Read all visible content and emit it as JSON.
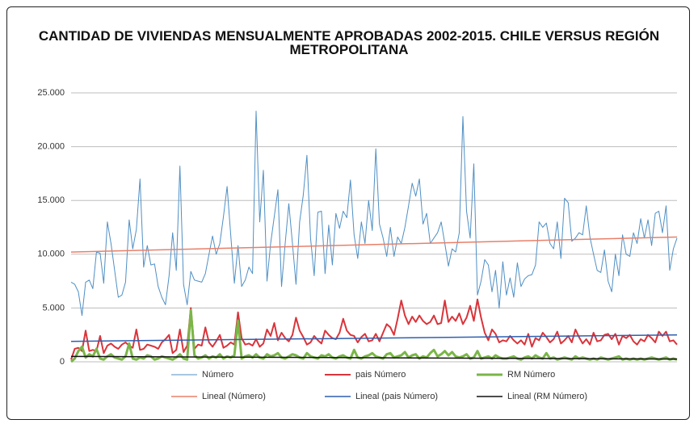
{
  "chart_data": {
    "type": "line",
    "title": "CANTIDAD DE VIVIENDAS MENSUALMENTE APROBADAS 2002-2015. CHILE VERSUS REGIÓN METROPOLITANA",
    "ylim": [
      0,
      25000
    ],
    "yticks": [
      0,
      {
        "value": 5000,
        "label": "5.000"
      },
      {
        "value": 10000,
        "label": "10.000"
      },
      {
        "value": 15000,
        "label": "15.000"
      },
      {
        "value": 20000,
        "label": "20.000"
      },
      {
        "value": 25000,
        "label": "25.000"
      }
    ],
    "grid": true,
    "legend": "bottom",
    "series": [
      {
        "name": "Número",
        "color": "#4f8fc4",
        "values": [
          7400,
          7200,
          6500,
          4300,
          7400,
          7600,
          6800,
          10200,
          10100,
          7300,
          13000,
          11000,
          8500,
          6000,
          6200,
          7400,
          13200,
          10500,
          12300,
          17000,
          8800,
          10800,
          9000,
          9100,
          7000,
          6000,
          5300,
          8000,
          12000,
          8500,
          18200,
          7200,
          5300,
          8400,
          7600,
          7500,
          7400,
          8200,
          10000,
          11700,
          10000,
          11000,
          13500,
          16300,
          11800,
          7300,
          10800,
          7000,
          7600,
          8800,
          8200,
          23300,
          13000,
          17800,
          7500,
          11000,
          13500,
          16000,
          7000,
          11000,
          14700,
          11000,
          7200,
          13000,
          15500,
          19200,
          11500,
          8000,
          13900,
          14000,
          8200,
          12700,
          9000,
          13800,
          12400,
          14000,
          13400,
          16900,
          11800,
          9600,
          13000,
          11000,
          15000,
          12200,
          19800,
          12800,
          11500,
          9800,
          12500,
          9800,
          11600,
          11000,
          12500,
          14500,
          16600,
          15400,
          17000,
          12800,
          13800,
          11000,
          11500,
          12000,
          13000,
          11000,
          8900,
          10500,
          10200,
          12000,
          22800,
          14000,
          11500,
          18400,
          6200,
          7500,
          9500,
          9000,
          6500,
          8500,
          5000,
          9300,
          6200,
          7800,
          6000,
          9200,
          7000,
          7700,
          8000,
          8100,
          9000,
          13000,
          12500,
          12900,
          11000,
          10500,
          13000,
          9600,
          15200,
          14800,
          11200,
          11500,
          12000,
          11800,
          14500,
          11600,
          10000,
          8500,
          8300,
          10400,
          7500,
          6500,
          10000,
          8000,
          11800,
          10000,
          9800,
          12000,
          11000,
          13300,
          11500,
          13200,
          10800,
          13800,
          14000,
          12000,
          14500,
          8500,
          10500,
          11500
        ]
      },
      {
        "name": "pais Número",
        "color": "#d9343b",
        "values": [
          200,
          1200,
          1300,
          1000,
          2900,
          1000,
          1100,
          1000,
          2400,
          800,
          1500,
          1700,
          1400,
          1200,
          1600,
          1800,
          1500,
          1300,
          3000,
          1100,
          1200,
          1600,
          1500,
          1400,
          1200,
          1800,
          2100,
          2500,
          800,
          1100,
          3000,
          900,
          1500,
          5000,
          1200,
          1600,
          1500,
          3200,
          1800,
          1400,
          1900,
          2500,
          1300,
          1500,
          1800,
          1600,
          4600,
          2200,
          1600,
          1700,
          1500,
          2100,
          1400,
          1700,
          3000,
          2400,
          3600,
          2000,
          2700,
          2200,
          1900,
          2500,
          4100,
          2900,
          2300,
          1600,
          1800,
          2400,
          2000,
          1700,
          2900,
          2500,
          2200,
          2100,
          2700,
          4000,
          2900,
          2500,
          2400,
          1800,
          2300,
          2600,
          1900,
          2000,
          2600,
          1900,
          2700,
          3500,
          3200,
          2500,
          4000,
          5700,
          4300,
          3500,
          4200,
          3700,
          4300,
          3800,
          3500,
          3700,
          4300,
          3500,
          3600,
          5700,
          3700,
          4200,
          3800,
          4500,
          3500,
          4100,
          5200,
          3800,
          5800,
          4100,
          2700,
          2000,
          3000,
          2600,
          1800,
          2000,
          1900,
          2400,
          2000,
          1700,
          2000,
          1600,
          2600,
          1400,
          2200,
          2000,
          2700,
          2300,
          1800,
          2100,
          2800,
          1700,
          2000,
          2400,
          1800,
          3000,
          2300,
          1700,
          2100,
          1600,
          2700,
          1900,
          2000,
          2500,
          2600,
          2100,
          2600,
          1600,
          2400,
          2200,
          2500,
          1900,
          1600,
          2100,
          1900,
          2500,
          2200,
          1800,
          2800,
          2400,
          2800,
          1900,
          2000,
          1600
        ]
      },
      {
        "name": "RM Número",
        "color": "#7ab648",
        "values": [
          0,
          300,
          1000,
          1400,
          400,
          700,
          500,
          1200,
          300,
          200,
          500,
          700,
          400,
          300,
          200,
          500,
          1700,
          300,
          200,
          400,
          300,
          600,
          500,
          200,
          300,
          500,
          400,
          300,
          200,
          400,
          700,
          300,
          200,
          4800,
          600,
          300,
          400,
          600,
          300,
          500,
          400,
          700,
          300,
          500,
          400,
          600,
          3800,
          300,
          500,
          600,
          400,
          700,
          400,
          300,
          700,
          500,
          600,
          800,
          400,
          300,
          500,
          700,
          600,
          400,
          300,
          800,
          500,
          400,
          300,
          600,
          500,
          700,
          400,
          300,
          500,
          600,
          400,
          300,
          1100,
          400,
          300,
          500,
          600,
          800,
          500,
          400,
          300,
          700,
          800,
          400,
          500,
          600,
          900,
          400,
          600,
          700,
          300,
          500,
          400,
          800,
          1100,
          500,
          700,
          1000,
          600,
          900,
          500,
          400,
          500,
          700,
          300,
          400,
          1000,
          300,
          400,
          500,
          300,
          600,
          400,
          300,
          300,
          400,
          500,
          300,
          200,
          400,
          500,
          300,
          600,
          400,
          300,
          800,
          300,
          400,
          200,
          300,
          400,
          300,
          200,
          500,
          300,
          400,
          300,
          200,
          300,
          200,
          400,
          300,
          200,
          300,
          400,
          500,
          200,
          300,
          200,
          300,
          200,
          300,
          200,
          300,
          400,
          300,
          200,
          300,
          400,
          200,
          300,
          200
        ]
      }
    ],
    "trendlines": [
      {
        "name": "Lineal (Número)",
        "color": "#e8806a",
        "values": [
          10200,
          11600
        ]
      },
      {
        "name": "Lineal (pais Número)",
        "color": "#2f5fb0",
        "values": [
          1900,
          2500
        ]
      },
      {
        "name": "Lineal (RM Número)",
        "color": "#111111",
        "values": [
          500,
          250
        ]
      }
    ]
  }
}
